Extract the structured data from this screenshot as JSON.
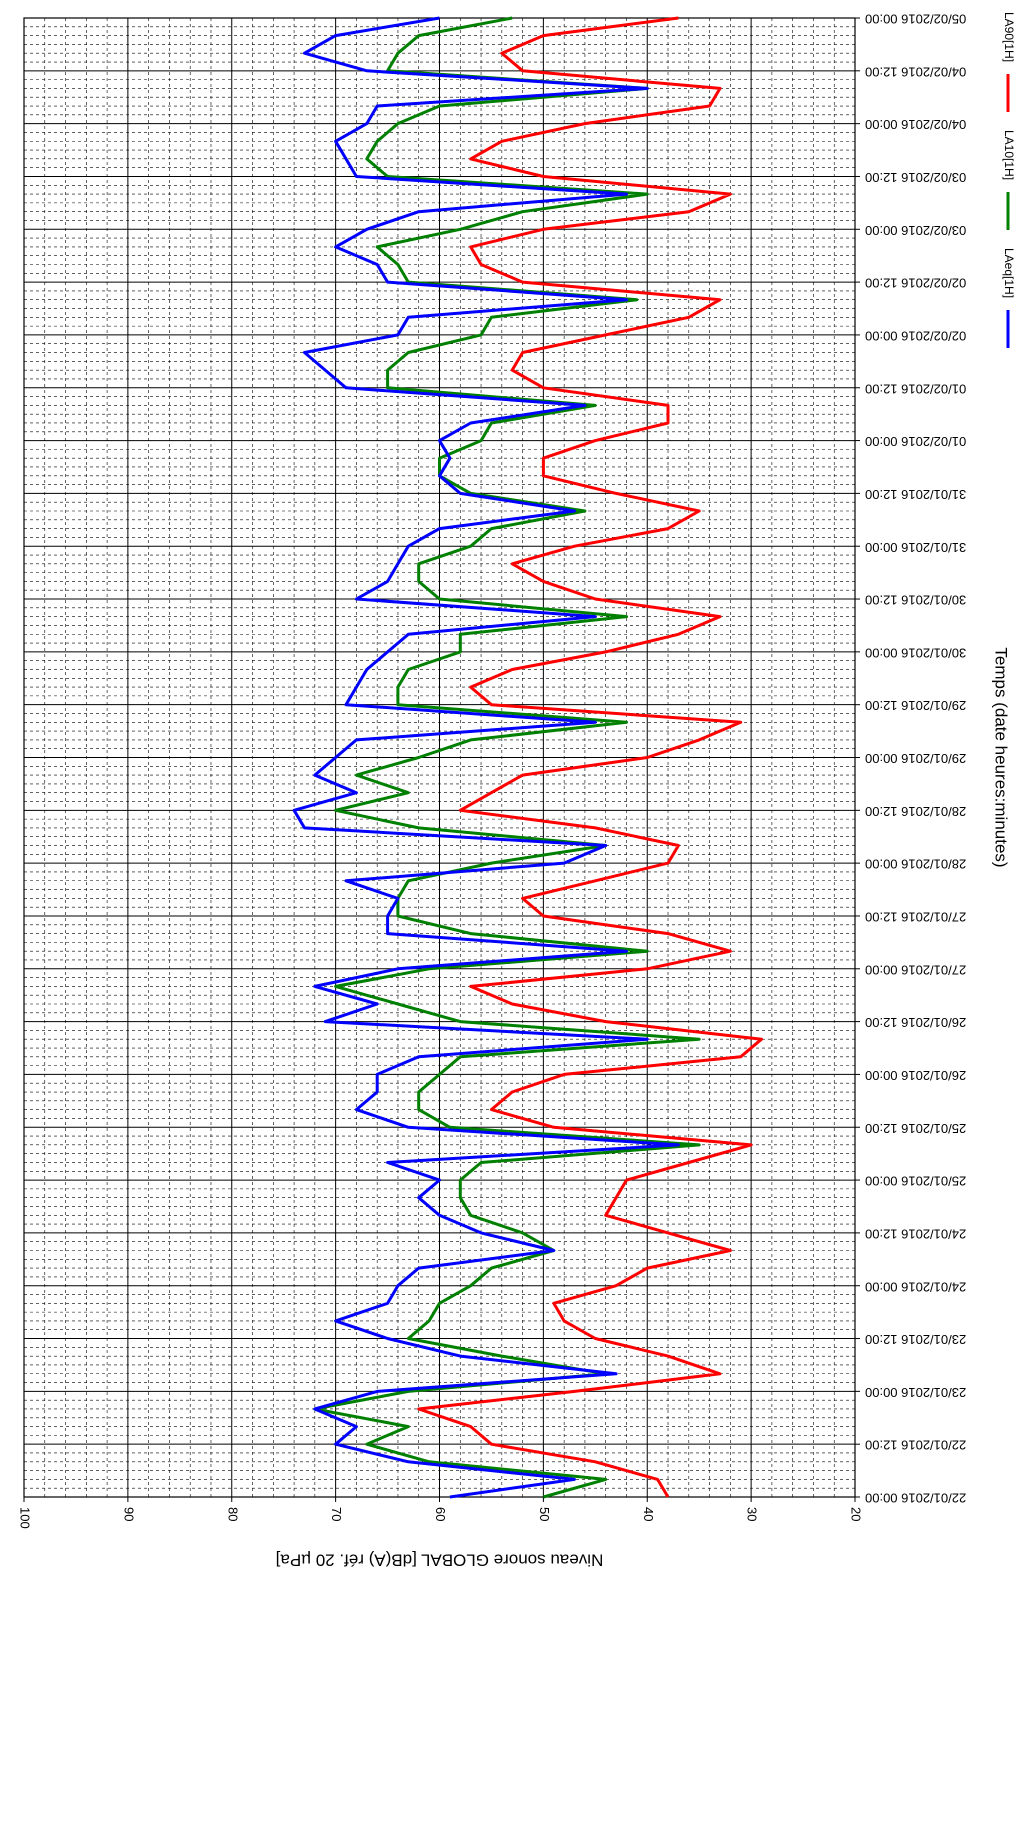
{
  "chart_data": {
    "type": "line",
    "xlabel": "Temps (date heures:minutes)",
    "ylabel": "Niveau sonore GLOBAL [dB(A) réf. 20 µPa]",
    "x": [
      0,
      4,
      8,
      12,
      16,
      20,
      24,
      28,
      32,
      36,
      40,
      44,
      48,
      52,
      56,
      60,
      64,
      68,
      72,
      76,
      80,
      84,
      88,
      92,
      96,
      100,
      104,
      108,
      112,
      116,
      120,
      124,
      128,
      132,
      136,
      140,
      144,
      148,
      152,
      156,
      160,
      164,
      168,
      172,
      176,
      180,
      184,
      188,
      192,
      196,
      200,
      204,
      208,
      212,
      216,
      220,
      224,
      228,
      232,
      236,
      240,
      244,
      248,
      252,
      256,
      260,
      264,
      268,
      272,
      276,
      280,
      284,
      288,
      292,
      296,
      300,
      304,
      308,
      312,
      316,
      320,
      324,
      328,
      332,
      336
    ],
    "series": [
      {
        "name": "LAeq[1H]",
        "color": "#0000ff",
        "values": [
          59,
          47,
          63,
          70,
          68,
          72,
          66,
          43,
          58,
          65,
          70,
          65,
          64,
          62,
          49,
          56,
          60,
          62,
          60,
          65,
          37,
          63,
          68,
          66,
          66,
          62,
          40,
          71,
          66,
          72,
          64,
          42,
          65,
          65,
          64,
          69,
          48,
          44,
          73,
          74,
          68,
          72,
          70,
          68,
          45,
          69,
          68,
          67,
          65,
          63,
          45,
          68,
          65,
          64,
          63,
          60,
          47,
          58,
          60,
          59,
          60,
          57,
          46,
          69,
          71,
          73,
          64,
          63,
          42,
          65,
          66,
          70,
          67,
          62,
          42,
          68,
          69,
          70,
          67,
          66,
          40,
          67,
          73,
          70,
          60
        ]
      },
      {
        "name": "LA10[1H]",
        "color": "#008000",
        "values": [
          50,
          44,
          61,
          67,
          63,
          72,
          63,
          44,
          54,
          63,
          61,
          60,
          57,
          55,
          49,
          52,
          57,
          58,
          58,
          56,
          35,
          59,
          62,
          62,
          60,
          58,
          35,
          58,
          64,
          70,
          61,
          40,
          57,
          64,
          64,
          63,
          55,
          44,
          62,
          70,
          63,
          68,
          62,
          57,
          42,
          64,
          64,
          63,
          58,
          58,
          42,
          60,
          62,
          62,
          57,
          55,
          46,
          57,
          60,
          60,
          56,
          55,
          45,
          65,
          65,
          63,
          56,
          55,
          41,
          63,
          64,
          66,
          58,
          52,
          40,
          65,
          67,
          66,
          64,
          60,
          40,
          65,
          64,
          62,
          53
        ]
      },
      {
        "name": "LA90[1H]",
        "color": "#ff0000",
        "values": [
          38,
          39,
          45,
          55,
          57,
          62,
          47,
          33,
          38,
          45,
          48,
          49,
          43,
          40,
          32,
          38,
          44,
          43,
          42,
          36,
          30,
          49,
          55,
          53,
          48,
          31,
          29,
          44,
          53,
          57,
          40,
          32,
          38,
          50,
          52,
          45,
          38,
          37,
          45,
          58,
          55,
          52,
          40,
          35,
          31,
          55,
          57,
          53,
          44,
          37,
          33,
          45,
          50,
          53,
          47,
          38,
          35,
          43,
          50,
          50,
          45,
          38,
          38,
          50,
          53,
          52,
          44,
          36,
          33,
          52,
          56,
          57,
          50,
          36,
          32,
          50,
          57,
          54,
          46,
          34,
          33,
          52,
          54,
          50,
          37
        ]
      }
    ],
    "xlim": [
      0,
      336
    ],
    "xticks": [
      {
        "value": 0,
        "label": "22/01/2016 00:00"
      },
      {
        "value": 12,
        "label": "22/01/2016 12:00"
      },
      {
        "value": 24,
        "label": "23/01/2016 00:00"
      },
      {
        "value": 36,
        "label": "23/01/2016 12:00"
      },
      {
        "value": 48,
        "label": "24/01/2016 00:00"
      },
      {
        "value": 60,
        "label": "24/01/2016 12:00"
      },
      {
        "value": 72,
        "label": "25/01/2016 00:00"
      },
      {
        "value": 84,
        "label": "25/01/2016 12:00"
      },
      {
        "value": 96,
        "label": "26/01/2016 00:00"
      },
      {
        "value": 108,
        "label": "26/01/2016 12:00"
      },
      {
        "value": 120,
        "label": "27/01/2016 00:00"
      },
      {
        "value": 132,
        "label": "27/01/2016 12:00"
      },
      {
        "value": 144,
        "label": "28/01/2016 00:00"
      },
      {
        "value": 156,
        "label": "28/01/2016 12:00"
      },
      {
        "value": 168,
        "label": "29/01/2016 00:00"
      },
      {
        "value": 180,
        "label": "29/01/2016 12:00"
      },
      {
        "value": 192,
        "label": "30/01/2016 00:00"
      },
      {
        "value": 204,
        "label": "30/01/2016 12:00"
      },
      {
        "value": 216,
        "label": "31/01/2016 00:00"
      },
      {
        "value": 228,
        "label": "31/01/2016 12:00"
      },
      {
        "value": 240,
        "label": "01/02/2016 00:00"
      },
      {
        "value": 252,
        "label": "01/02/2016 12:00"
      },
      {
        "value": 264,
        "label": "02/02/2016 00:00"
      },
      {
        "value": 276,
        "label": "02/02/2016 12:00"
      },
      {
        "value": 288,
        "label": "03/02/2016 00:00"
      },
      {
        "value": 300,
        "label": "03/02/2016 12:00"
      },
      {
        "value": 312,
        "label": "04/02/2016 00:00"
      },
      {
        "value": 324,
        "label": "04/02/2016 12:00"
      },
      {
        "value": 336,
        "label": "05/02/2016 00:00"
      }
    ],
    "ylim": [
      20,
      100
    ],
    "yticks": [
      20,
      30,
      40,
      50,
      60,
      70,
      80,
      90,
      100
    ],
    "grid": true,
    "legend": "top-right"
  }
}
